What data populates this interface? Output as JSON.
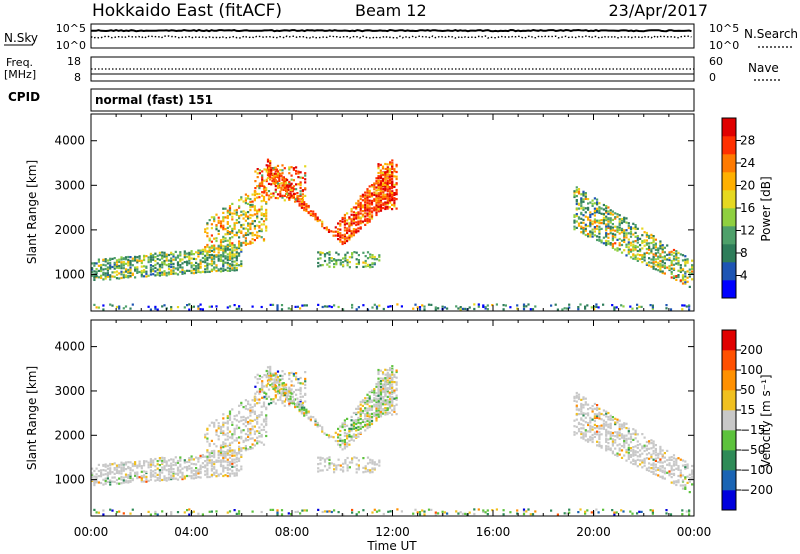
{
  "header": {
    "station": "Hokkaido East (fitACF)",
    "beam": "Beam 12",
    "date": "23/Apr/2017"
  },
  "strips": {
    "nsky_label": "N.Sky",
    "nsky_ticks": [
      "10^5",
      "10^0"
    ],
    "nsearch_label": "N.Search",
    "nsearch_ticks": [
      "10^5",
      "10^0"
    ],
    "freq_label": "Freq.",
    "freq_unit": "[MHz]",
    "freq_ticks": [
      "18",
      "8"
    ],
    "nave_label": "Nave",
    "nave_ticks": [
      "60",
      "0"
    ],
    "cpid_label": "CPID",
    "cpid_text": "normal (fast) 151"
  },
  "chart_data": [
    {
      "type": "heatmap",
      "name": "power",
      "ylabel": "Slant Range [km]",
      "xlabel": "Time UT",
      "x_ticks": [
        "00:00",
        "04:00",
        "08:00",
        "12:00",
        "16:00",
        "20:00",
        "00:00"
      ],
      "xlim_hours": [
        0,
        24
      ],
      "ylim_km": [
        180,
        4600
      ],
      "y_ticks": [
        1000,
        2000,
        3000,
        4000
      ],
      "colorbar": {
        "label": "Power [dB]",
        "range": [
          0,
          32
        ],
        "ticks": [
          4,
          8,
          12,
          16,
          20,
          24,
          28
        ],
        "colors": [
          "#0000ff",
          "#1e55b4",
          "#2e7d5a",
          "#4ea06a",
          "#8fd040",
          "#e6d820",
          "#ffb000",
          "#ff7a00",
          "#ff3000",
          "#e00000"
        ]
      }
    },
    {
      "type": "heatmap",
      "name": "velocity",
      "ylabel": "Slant Range [km]",
      "xlabel": "Time UT",
      "x_ticks": [
        "00:00",
        "04:00",
        "08:00",
        "12:00",
        "16:00",
        "20:00",
        "00:00"
      ],
      "xlim_hours": [
        0,
        24
      ],
      "ylim_km": [
        180,
        4600
      ],
      "y_ticks": [
        1000,
        2000,
        3000,
        4000
      ],
      "colorbar": {
        "label": "Velocity [m s⁻¹]",
        "ticks": [
          "200",
          "100",
          "50",
          "15",
          "−15",
          "−50",
          "−100",
          "−200"
        ],
        "colors": [
          "#0000dd",
          "#1a64b4",
          "#2e8b57",
          "#5cc23c",
          "#c8c8c8",
          "#f0c020",
          "#ff9000",
          "#ff5000",
          "#e00000"
        ]
      }
    }
  ],
  "xaxis_label": "Time UT"
}
